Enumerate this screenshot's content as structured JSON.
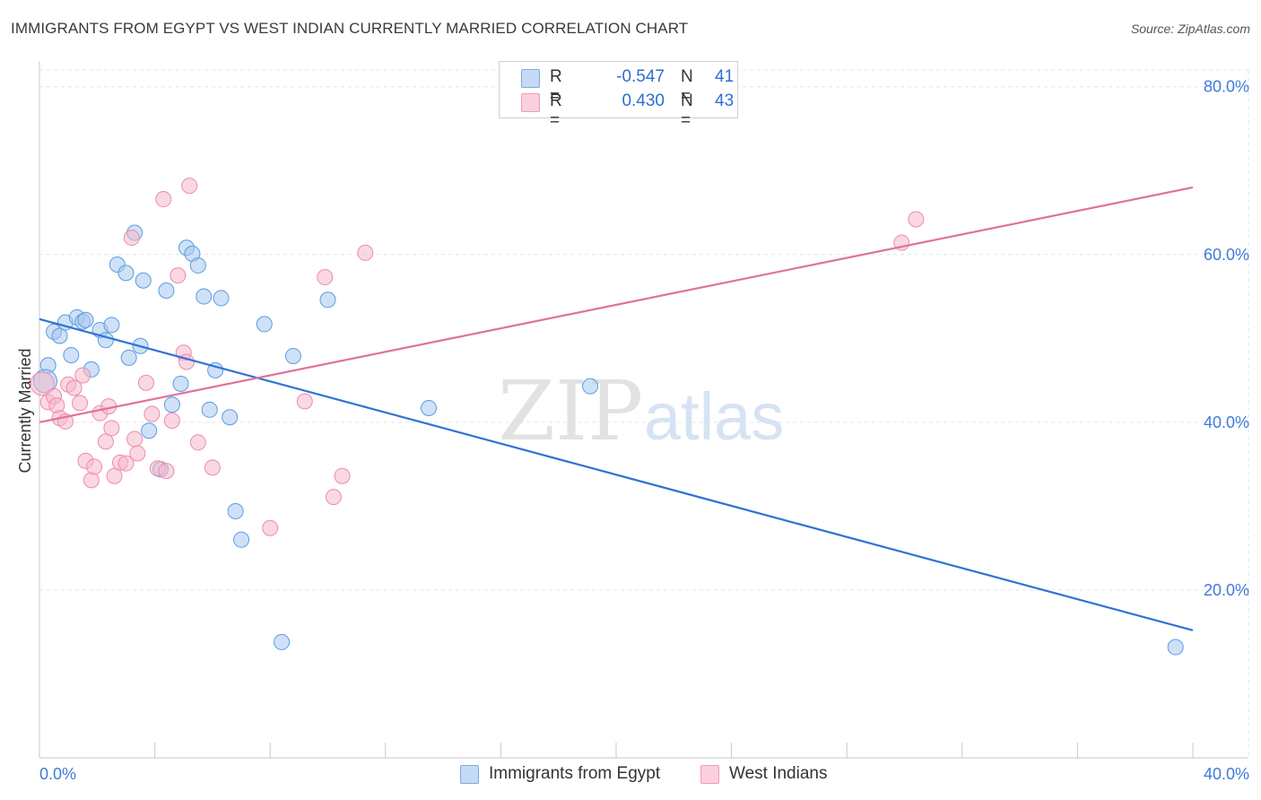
{
  "title": "IMMIGRANTS FROM EGYPT VS WEST INDIAN CURRENTLY MARRIED CORRELATION CHART",
  "source": "Source: ZipAtlas.com",
  "watermark": {
    "zip": "ZIP",
    "atlas": "atlas"
  },
  "legend": {
    "rows": [
      {
        "r_label": "R =",
        "r_value": "-0.547",
        "n_label": "N =",
        "n_value": "41",
        "color": "#a8c8f0"
      },
      {
        "r_label": "R =",
        "r_value": "0.430",
        "n_label": "N =",
        "n_value": "43",
        "color": "#f5b8cb"
      }
    ]
  },
  "bottom_legend": [
    {
      "label": "Immigrants from Egypt",
      "color": "#a8c8f0"
    },
    {
      "label": "West Indians",
      "color": "#f5b8cb"
    }
  ],
  "chart_data": {
    "type": "scatter",
    "title": "IMMIGRANTS FROM EGYPT VS WEST INDIAN CURRENTLY MARRIED CORRELATION CHART",
    "xlabel": "",
    "ylabel": "Currently Married",
    "xlim": [
      0,
      40
    ],
    "ylim": [
      0,
      82
    ],
    "x_tick_labels": [
      "0.0%",
      "40.0%"
    ],
    "y_ticks": [
      20,
      40,
      60,
      80
    ],
    "y_tick_labels": [
      "20.0%",
      "40.0%",
      "60.0%",
      "80.0%"
    ],
    "grid": true,
    "legend_position": "top-center",
    "series": [
      {
        "name": "Immigrants from Egypt",
        "color": "#5b9be0",
        "fill": "#a8c8f0",
        "line_color": "#2f72d4",
        "trend": [
          [
            0,
            52.3
          ],
          [
            40,
            15.2
          ]
        ],
        "points": [
          [
            0.3,
            46.8
          ],
          [
            0.5,
            50.8
          ],
          [
            0.7,
            50.3
          ],
          [
            0.9,
            51.9
          ],
          [
            1.1,
            48.0
          ],
          [
            1.3,
            52.5
          ],
          [
            1.5,
            52.0
          ],
          [
            1.6,
            52.2
          ],
          [
            1.8,
            46.3
          ],
          [
            2.1,
            51.0
          ],
          [
            2.3,
            49.8
          ],
          [
            2.5,
            51.6
          ],
          [
            2.7,
            58.8
          ],
          [
            3.0,
            57.8
          ],
          [
            3.1,
            47.7
          ],
          [
            3.3,
            62.6
          ],
          [
            3.5,
            49.1
          ],
          [
            3.6,
            56.9
          ],
          [
            3.8,
            39.0
          ],
          [
            4.2,
            34.4
          ],
          [
            4.4,
            55.7
          ],
          [
            4.6,
            42.1
          ],
          [
            4.9,
            44.6
          ],
          [
            5.1,
            60.8
          ],
          [
            5.3,
            60.1
          ],
          [
            5.5,
            58.7
          ],
          [
            5.7,
            55.0
          ],
          [
            5.9,
            41.5
          ],
          [
            6.1,
            46.2
          ],
          [
            6.3,
            54.8
          ],
          [
            6.6,
            40.6
          ],
          [
            6.8,
            29.4
          ],
          [
            7.0,
            26.0
          ],
          [
            7.8,
            51.7
          ],
          [
            8.4,
            13.8
          ],
          [
            8.8,
            47.9
          ],
          [
            10.0,
            54.6
          ],
          [
            13.5,
            41.7
          ],
          [
            19.1,
            44.3
          ],
          [
            39.4,
            13.2
          ],
          [
            0.2,
            44.9
          ]
        ]
      },
      {
        "name": "West Indians",
        "color": "#ef8aaa",
        "fill": "#f5b8cb",
        "line_color": "#e0729a",
        "trend": [
          [
            0,
            40.0
          ],
          [
            40,
            68.0
          ]
        ],
        "points": [
          [
            0.1,
            44.6
          ],
          [
            0.3,
            42.4
          ],
          [
            0.5,
            43.1
          ],
          [
            0.6,
            42.0
          ],
          [
            0.7,
            40.5
          ],
          [
            0.9,
            40.1
          ],
          [
            1.0,
            44.5
          ],
          [
            1.2,
            44.1
          ],
          [
            1.4,
            42.3
          ],
          [
            1.5,
            45.6
          ],
          [
            1.6,
            35.4
          ],
          [
            1.8,
            33.1
          ],
          [
            1.9,
            34.7
          ],
          [
            2.1,
            41.1
          ],
          [
            2.3,
            37.7
          ],
          [
            2.4,
            41.9
          ],
          [
            2.5,
            39.3
          ],
          [
            2.6,
            33.6
          ],
          [
            2.8,
            35.2
          ],
          [
            3.0,
            35.1
          ],
          [
            3.2,
            62.0
          ],
          [
            3.3,
            38.0
          ],
          [
            3.4,
            36.3
          ],
          [
            3.7,
            44.7
          ],
          [
            3.9,
            41.0
          ],
          [
            4.1,
            34.5
          ],
          [
            4.3,
            66.6
          ],
          [
            4.4,
            34.2
          ],
          [
            4.6,
            40.2
          ],
          [
            4.8,
            57.5
          ],
          [
            5.0,
            48.3
          ],
          [
            5.1,
            47.2
          ],
          [
            5.2,
            68.2
          ],
          [
            5.5,
            37.6
          ],
          [
            6.0,
            34.6
          ],
          [
            8.0,
            27.4
          ],
          [
            9.2,
            42.5
          ],
          [
            9.9,
            57.3
          ],
          [
            10.2,
            31.1
          ],
          [
            10.5,
            33.6
          ],
          [
            11.3,
            60.2
          ],
          [
            29.9,
            61.4
          ],
          [
            30.4,
            64.2
          ]
        ]
      }
    ]
  }
}
